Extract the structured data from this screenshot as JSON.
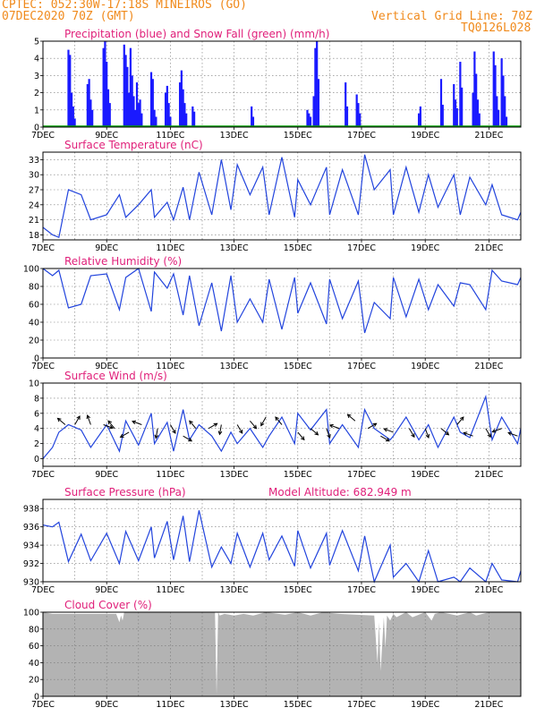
{
  "header": {
    "org_location": "CPTEC:   052:30W-17:18S  MINEIROS (GO)",
    "run_time": "07DEC2020 70Z (GMT)",
    "grid_line": "Vertical Grid Line: 70Z",
    "code": "TQ0126L028"
  },
  "colors": {
    "header": "#f08a1c",
    "title": "#e0207a",
    "precip": "#1a1aff",
    "snow": "#00a000",
    "line": "#2244dd",
    "cloud": "#b3b3b3",
    "grid": "#777777"
  },
  "x_axis": {
    "start": "7DEC",
    "end": "22DEC",
    "ticks": [
      {
        "day": 7,
        "label": "7DEC"
      },
      {
        "day": 9,
        "label": "9DEC"
      },
      {
        "day": 11,
        "label": "11DEC"
      },
      {
        "day": 13,
        "label": "13DEC"
      },
      {
        "day": 15,
        "label": "15DEC"
      },
      {
        "day": 17,
        "label": "17DEC"
      },
      {
        "day": 19,
        "label": "19DEC"
      },
      {
        "day": 21,
        "label": "21DEC"
      }
    ]
  },
  "chart_data": [
    {
      "id": "precip",
      "type": "bar",
      "title": "Precipitation (blue) and Snow Fall (green) (mm/h)",
      "ylim": [
        0,
        5
      ],
      "yticks": [
        0,
        1,
        2,
        3,
        4,
        5
      ],
      "series": [
        {
          "name": "Precipitation",
          "color": "#1a1aff",
          "x": [
            7.8,
            7.85,
            7.9,
            7.95,
            8.0,
            8.4,
            8.45,
            8.5,
            8.55,
            8.9,
            8.95,
            9.0,
            9.05,
            9.1,
            9.55,
            9.6,
            9.65,
            9.7,
            9.75,
            9.8,
            9.85,
            9.9,
            9.95,
            10.0,
            10.05,
            10.1,
            10.4,
            10.45,
            10.5,
            10.55,
            10.85,
            10.9,
            10.95,
            11.0,
            11.3,
            11.35,
            11.4,
            11.45,
            11.5,
            11.7,
            11.75,
            13.55,
            13.6,
            15.3,
            15.35,
            15.4,
            15.5,
            15.55,
            15.6,
            15.65,
            16.5,
            16.55,
            16.85,
            16.9,
            16.95,
            18.8,
            18.85,
            19.5,
            19.55,
            19.9,
            19.95,
            20.0,
            20.1,
            20.15,
            20.5,
            20.55,
            20.6,
            20.65,
            20.7,
            21.15,
            21.2,
            21.25,
            21.3,
            21.4,
            21.45,
            21.5,
            21.55
          ],
          "values": [
            4.5,
            4.2,
            2.0,
            1.2,
            0.5,
            2.5,
            2.8,
            1.6,
            1.0,
            4.6,
            5.0,
            3.8,
            2.2,
            1.4,
            4.8,
            4.2,
            3.5,
            2.0,
            4.6,
            3.0,
            1.8,
            1.0,
            2.6,
            1.4,
            1.6,
            0.8,
            3.2,
            2.8,
            1.0,
            0.6,
            2.0,
            2.4,
            1.4,
            0.6,
            2.6,
            3.3,
            2.2,
            1.4,
            0.8,
            1.2,
            0.9,
            1.2,
            0.6,
            1.0,
            0.8,
            0.6,
            1.8,
            4.6,
            5.0,
            2.8,
            2.6,
            1.2,
            1.9,
            1.4,
            0.8,
            0.8,
            1.2,
            2.8,
            1.3,
            2.5,
            1.6,
            1.1,
            3.8,
            2.3,
            2.0,
            4.4,
            3.1,
            1.6,
            0.8,
            4.4,
            3.6,
            1.8,
            1.0,
            4.0,
            3.0,
            1.8,
            0.6
          ]
        },
        {
          "name": "Snow Fall",
          "color": "#00a000",
          "x": [],
          "values": []
        }
      ]
    },
    {
      "id": "temp",
      "type": "line",
      "title": "Surface Temperature (nC)",
      "ylim": [
        17,
        34.5
      ],
      "yticks": [
        18,
        21,
        24,
        27,
        30,
        33
      ],
      "x": [
        7.0,
        7.3,
        7.5,
        7.8,
        8.2,
        8.5,
        9.0,
        9.4,
        9.6,
        10.0,
        10.4,
        10.5,
        10.9,
        11.1,
        11.4,
        11.6,
        11.9,
        12.3,
        12.6,
        12.9,
        13.1,
        13.5,
        13.9,
        14.1,
        14.5,
        14.9,
        15.0,
        15.4,
        15.9,
        16.0,
        16.4,
        16.9,
        17.1,
        17.4,
        17.9,
        18.0,
        18.4,
        18.8,
        19.1,
        19.4,
        19.9,
        20.1,
        20.4,
        20.9,
        21.1,
        21.4,
        21.9,
        22.0
      ],
      "values": [
        19.5,
        18.0,
        17.5,
        27.0,
        26.0,
        21.0,
        22.0,
        26.0,
        21.5,
        24.0,
        27.0,
        21.5,
        24.5,
        21.0,
        27.5,
        21.0,
        30.5,
        22.0,
        33.0,
        23.0,
        32.0,
        26.0,
        31.5,
        22.0,
        33.5,
        21.5,
        29.0,
        24.0,
        31.5,
        22.0,
        31.0,
        22.0,
        34.0,
        27.0,
        31.0,
        22.0,
        31.5,
        22.5,
        30.0,
        23.5,
        30.0,
        22.0,
        29.5,
        24.0,
        28.0,
        22.0,
        21.0,
        22.5
      ]
    },
    {
      "id": "rh",
      "type": "line",
      "title": "Relative Humidity (%)",
      "ylim": [
        0,
        100
      ],
      "yticks": [
        0,
        20,
        40,
        60,
        80,
        100
      ],
      "x": [
        7.0,
        7.3,
        7.5,
        7.8,
        8.2,
        8.5,
        9.0,
        9.4,
        9.6,
        10.0,
        10.4,
        10.5,
        10.9,
        11.1,
        11.4,
        11.6,
        11.9,
        12.3,
        12.6,
        12.9,
        13.1,
        13.5,
        13.9,
        14.1,
        14.5,
        14.9,
        15.0,
        15.4,
        15.9,
        16.0,
        16.4,
        16.9,
        17.1,
        17.4,
        17.9,
        18.0,
        18.4,
        18.8,
        19.1,
        19.4,
        19.9,
        20.1,
        20.4,
        20.9,
        21.1,
        21.4,
        21.9,
        22.0
      ],
      "values": [
        100,
        92,
        98,
        56,
        60,
        92,
        94,
        54,
        90,
        100,
        52,
        96,
        78,
        94,
        48,
        92,
        36,
        84,
        30,
        92,
        40,
        66,
        40,
        88,
        32,
        90,
        50,
        84,
        38,
        88,
        44,
        86,
        28,
        62,
        44,
        90,
        46,
        88,
        54,
        82,
        58,
        84,
        82,
        54,
        98,
        86,
        82,
        90
      ]
    },
    {
      "id": "wind",
      "type": "line",
      "title": "Surface Wind (m/s)",
      "ylim": [
        -1,
        10
      ],
      "yticks": [
        0,
        2,
        4,
        6,
        8,
        10
      ],
      "x": [
        7.0,
        7.3,
        7.5,
        7.8,
        8.2,
        8.5,
        9.0,
        9.4,
        9.6,
        10.0,
        10.4,
        10.5,
        10.9,
        11.1,
        11.4,
        11.6,
        11.9,
        12.3,
        12.6,
        12.9,
        13.1,
        13.5,
        13.9,
        14.1,
        14.5,
        14.9,
        15.0,
        15.4,
        15.9,
        16.0,
        16.4,
        16.9,
        17.1,
        17.4,
        17.9,
        18.0,
        18.4,
        18.8,
        19.1,
        19.4,
        19.9,
        20.1,
        20.4,
        20.9,
        21.1,
        21.4,
        21.9,
        22.0
      ],
      "values": [
        0,
        1.5,
        3.5,
        4.5,
        3.8,
        1.5,
        4.5,
        1.0,
        5.0,
        1.8,
        6.0,
        2.0,
        4.8,
        1.0,
        6.5,
        2.5,
        4.5,
        3.0,
        1.0,
        3.5,
        2.0,
        4.0,
        1.5,
        3.0,
        5.5,
        2.0,
        6.0,
        3.8,
        6.5,
        2.0,
        4.5,
        1.5,
        6.5,
        4.0,
        2.5,
        3.0,
        5.5,
        2.5,
        4.5,
        1.5,
        5.5,
        3.5,
        2.8,
        8.2,
        2.5,
        5.5,
        2.0,
        4.0
      ],
      "arrows": [
        {
          "day": 7.7,
          "speed": 4.5,
          "dir_deg": 220
        },
        {
          "day": 8.0,
          "speed": 4.5,
          "dir_deg": 300
        },
        {
          "day": 8.5,
          "speed": 4.5,
          "dir_deg": 250
        },
        {
          "day": 8.9,
          "speed": 4.5,
          "dir_deg": 20
        },
        {
          "day": 9.25,
          "speed": 4.0,
          "dir_deg": 230
        },
        {
          "day": 9.7,
          "speed": 3.5,
          "dir_deg": 150
        },
        {
          "day": 10.1,
          "speed": 4.5,
          "dir_deg": 200
        },
        {
          "day": 10.6,
          "speed": 4.0,
          "dir_deg": 100
        },
        {
          "day": 11.0,
          "speed": 4.5,
          "dir_deg": 60
        },
        {
          "day": 11.4,
          "speed": 3.0,
          "dir_deg": 30
        },
        {
          "day": 11.8,
          "speed": 4.0,
          "dir_deg": 230
        },
        {
          "day": 12.2,
          "speed": 4.0,
          "dir_deg": 330
        },
        {
          "day": 12.6,
          "speed": 4.5,
          "dir_deg": 100
        },
        {
          "day": 13.1,
          "speed": 4.5,
          "dir_deg": 60
        },
        {
          "day": 13.5,
          "speed": 5.0,
          "dir_deg": 50
        },
        {
          "day": 14.0,
          "speed": 5.5,
          "dir_deg": 120
        },
        {
          "day": 14.5,
          "speed": 4.5,
          "dir_deg": 230
        },
        {
          "day": 15.0,
          "speed": 3.5,
          "dir_deg": 50
        },
        {
          "day": 15.4,
          "speed": 4.0,
          "dir_deg": 40
        },
        {
          "day": 15.9,
          "speed": 4.0,
          "dir_deg": 70
        },
        {
          "day": 16.3,
          "speed": 4.0,
          "dir_deg": 200
        },
        {
          "day": 16.8,
          "speed": 5.0,
          "dir_deg": 220
        },
        {
          "day": 17.2,
          "speed": 4.0,
          "dir_deg": 330
        },
        {
          "day": 17.6,
          "speed": 3.0,
          "dir_deg": 30
        },
        {
          "day": 18.0,
          "speed": 3.5,
          "dir_deg": 200
        },
        {
          "day": 18.5,
          "speed": 4.0,
          "dir_deg": 60
        },
        {
          "day": 19.0,
          "speed": 4.0,
          "dir_deg": 70
        },
        {
          "day": 19.5,
          "speed": 4.0,
          "dir_deg": 40
        },
        {
          "day": 20.0,
          "speed": 4.5,
          "dir_deg": 310
        },
        {
          "day": 20.5,
          "speed": 3.0,
          "dir_deg": 200
        },
        {
          "day": 20.9,
          "speed": 4.0,
          "dir_deg": 60
        },
        {
          "day": 21.4,
          "speed": 4.0,
          "dir_deg": 160
        },
        {
          "day": 21.9,
          "speed": 3.0,
          "dir_deg": 200
        }
      ]
    },
    {
      "id": "pressure",
      "type": "line",
      "title": "Surface Pressure (hPa)",
      "model_altitude": "Model Altitude: 682.949  m",
      "ylim": [
        930,
        939
      ],
      "yticks": [
        930,
        932,
        934,
        936,
        938
      ],
      "x": [
        7.0,
        7.3,
        7.5,
        7.8,
        8.2,
        8.5,
        9.0,
        9.4,
        9.6,
        10.0,
        10.4,
        10.5,
        10.9,
        11.1,
        11.4,
        11.6,
        11.9,
        12.3,
        12.6,
        12.9,
        13.1,
        13.5,
        13.9,
        14.1,
        14.5,
        14.9,
        15.0,
        15.4,
        15.9,
        16.0,
        16.4,
        16.9,
        17.1,
        17.4,
        17.9,
        18.0,
        18.4,
        18.8,
        19.1,
        19.4,
        19.9,
        20.1,
        20.4,
        20.9,
        21.1,
        21.4,
        21.9,
        22.0
      ],
      "values": [
        936.2,
        936.0,
        936.5,
        932.2,
        935.2,
        932.3,
        935.3,
        932.0,
        935.5,
        932.3,
        936.0,
        932.6,
        936.6,
        932.4,
        937.2,
        932.2,
        937.8,
        931.6,
        933.8,
        932.0,
        935.3,
        931.6,
        935.3,
        932.4,
        935.0,
        931.7,
        935.6,
        931.5,
        935.3,
        931.8,
        935.6,
        931.2,
        935.0,
        930.0,
        934.0,
        930.5,
        932.0,
        930.0,
        933.4,
        930.0,
        930.5,
        930.0,
        931.5,
        930.0,
        932.0,
        930.2,
        930.0,
        931.2
      ]
    },
    {
      "id": "cloud",
      "type": "area",
      "title": "Cloud Cover (%)",
      "ylim": [
        0,
        100
      ],
      "yticks": [
        0,
        20,
        40,
        60,
        80,
        100
      ],
      "x": [
        7.0,
        7.3,
        9.3,
        9.4,
        9.45,
        9.5,
        9.55,
        12.4,
        12.45,
        12.5,
        12.55,
        12.7,
        13.0,
        13.3,
        13.6,
        14.0,
        14.6,
        15.0,
        15.4,
        15.8,
        16.3,
        17.4,
        17.5,
        17.55,
        17.6,
        17.7,
        17.75,
        17.8,
        17.9,
        18.0,
        18.1,
        18.4,
        18.6,
        19.0,
        19.2,
        19.3,
        19.5,
        20.0,
        20.4,
        20.6,
        20.8,
        21.0,
        21.5,
        22.0
      ],
      "values": [
        100,
        98,
        98,
        88,
        96,
        90,
        100,
        100,
        2,
        100,
        96,
        98,
        96,
        98,
        96,
        100,
        97,
        100,
        96,
        100,
        98,
        96,
        40,
        88,
        30,
        94,
        58,
        96,
        90,
        98,
        94,
        100,
        94,
        100,
        90,
        98,
        100,
        96,
        100,
        96,
        98,
        100,
        100,
        100
      ]
    }
  ]
}
